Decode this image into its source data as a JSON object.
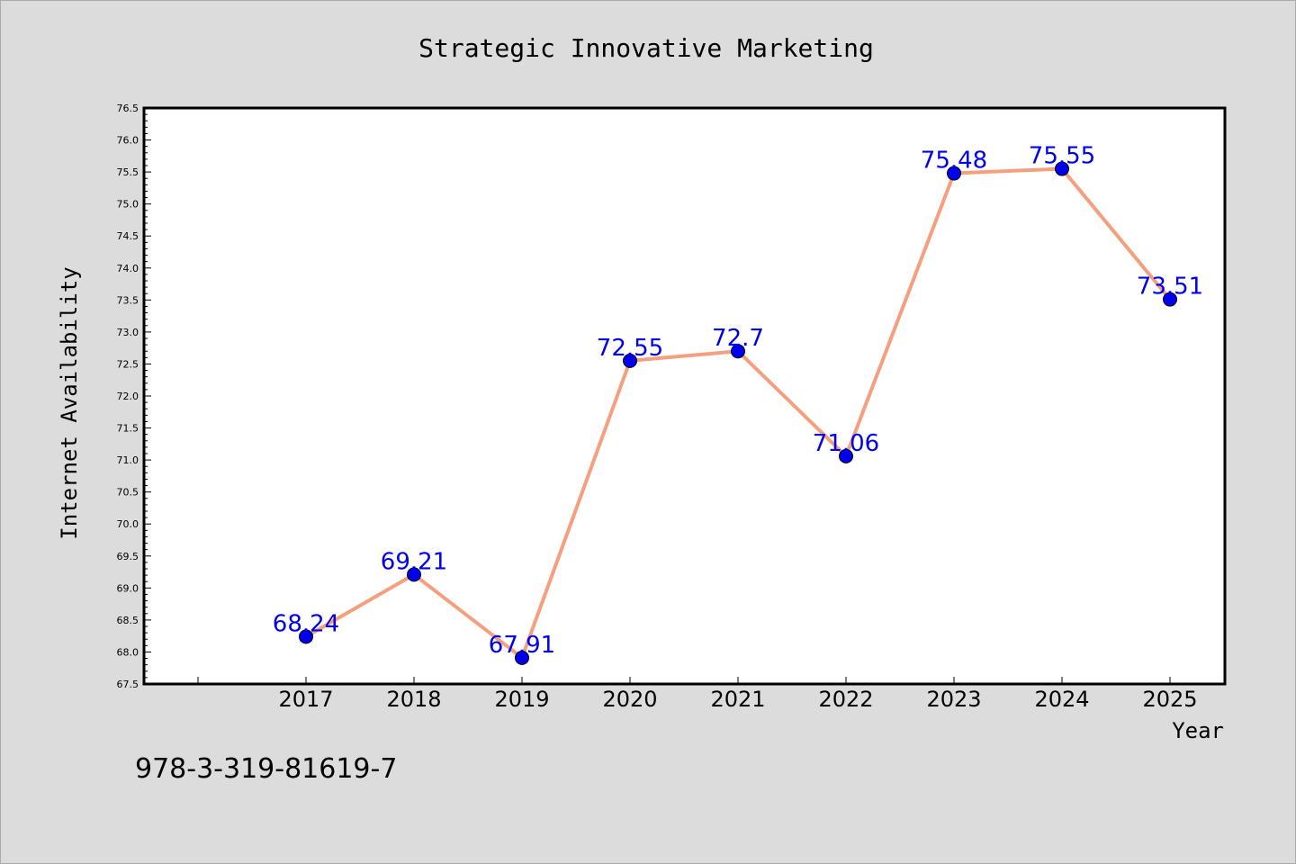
{
  "chart_data": {
    "type": "line",
    "title": "Strategic Innovative Marketing",
    "xlabel": "Year",
    "ylabel": "Internet Availability",
    "x": [
      "2017",
      "2018",
      "2019",
      "2020",
      "2021",
      "2022",
      "2023",
      "2024",
      "2025"
    ],
    "series": [
      {
        "values": [
          68.24,
          69.21,
          67.91,
          72.55,
          72.7,
          71.06,
          75.48,
          75.55,
          73.51
        ]
      }
    ],
    "data_labels": [
      "68.24",
      "69.21",
      "67.91",
      "72.55",
      "72.7",
      "71.06",
      "75.48",
      "75.55",
      "73.51"
    ],
    "yticks": [
      "67.5",
      "68.0",
      "68.5",
      "69.0",
      "69.5",
      "70.0",
      "70.5",
      "71.0",
      "71.5",
      "72.0",
      "72.5",
      "73.0",
      "73.5",
      "74.0",
      "74.5",
      "75.0",
      "75.5",
      "76.0",
      "76.5"
    ],
    "ylim": [
      67.5,
      76.5
    ],
    "grid": false,
    "legend": "none",
    "colors": {
      "line": "#f4a07f",
      "marker": "#0000ee",
      "label": "#0000ee",
      "background": "#dcdcdc",
      "plot_area": "#ffffff"
    }
  },
  "footer": {
    "isbn": "978-3-319-81619-7"
  }
}
